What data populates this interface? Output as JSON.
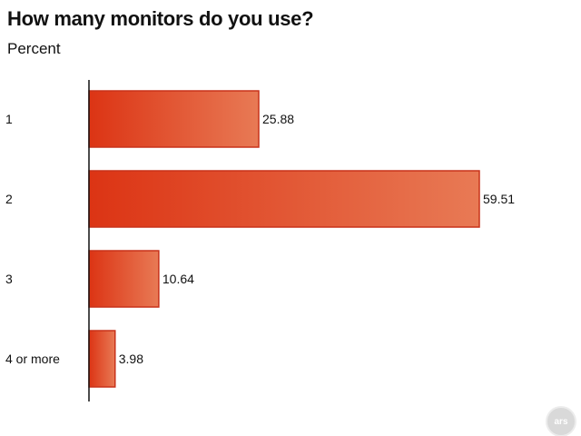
{
  "header": {
    "title": "How many monitors do you use?",
    "subtitle": "Percent"
  },
  "watermark": {
    "text": "ars"
  },
  "colors": {
    "bar_start": "#dc3414",
    "bar_end": "#e87a55",
    "bar_stroke": "#c8321a",
    "axis": "#111111"
  },
  "chart_data": {
    "type": "bar",
    "orientation": "horizontal",
    "title": "How many monitors do you use?",
    "subtitle": "Percent",
    "categories": [
      "1",
      "2",
      "3",
      "4 or more"
    ],
    "values": [
      25.88,
      59.51,
      10.64,
      3.98
    ],
    "value_labels": [
      "25.88",
      "59.51",
      "10.64",
      "3.98"
    ],
    "xlim": [
      0,
      59.51
    ],
    "grid": false,
    "legend": "none"
  }
}
